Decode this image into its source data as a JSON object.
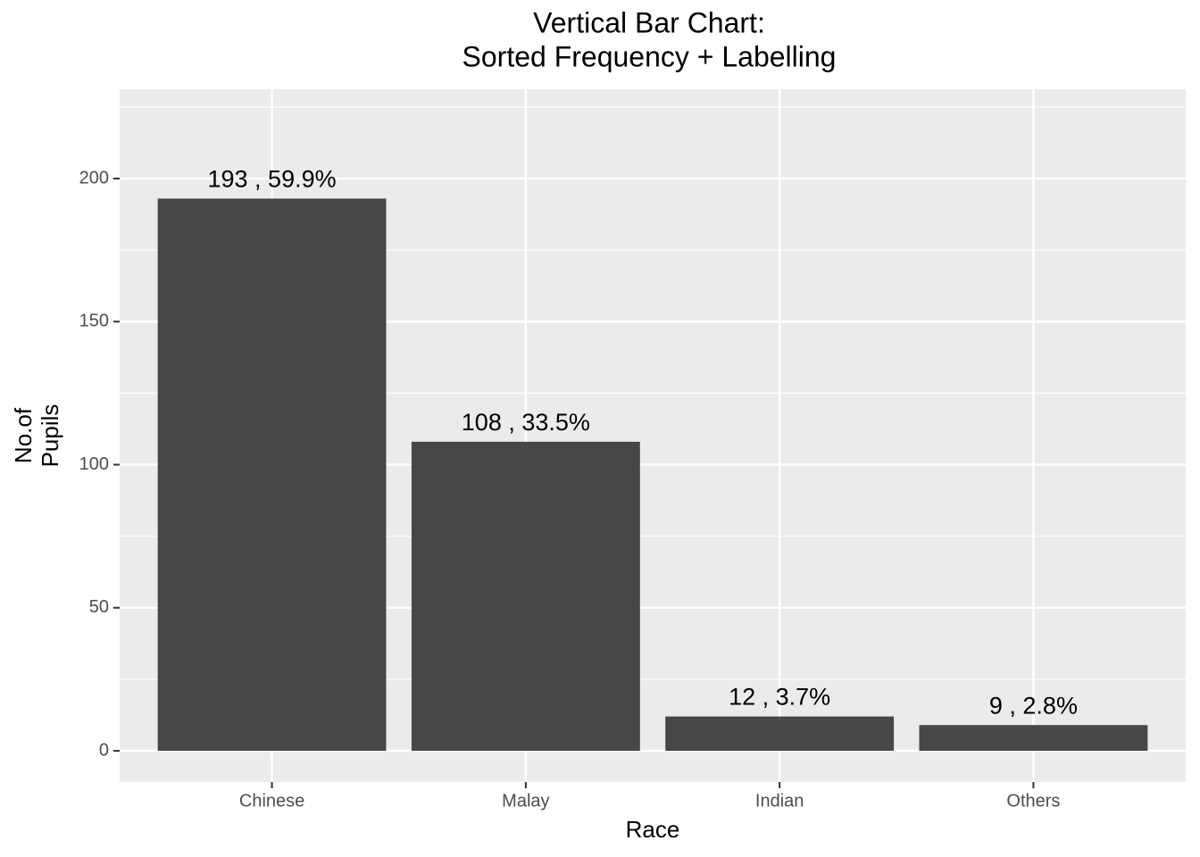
{
  "chart_data": {
    "type": "bar",
    "title": [
      "Vertical Bar Chart:",
      "Sorted Frequency + Labelling"
    ],
    "x_label": "Race",
    "y_label": [
      "No.of",
      "Pupils"
    ],
    "categories": [
      "Chinese",
      "Malay",
      "Indian",
      "Others"
    ],
    "values": [
      193,
      108,
      12,
      9
    ],
    "value_labels": [
      "193 , 59.9%",
      "108 , 33.5%",
      "12 , 3.7%",
      "9 , 2.8%"
    ],
    "color": "#474747",
    "ylim": [
      -10.9,
      231.2
    ],
    "yticks": [
      0,
      50,
      100,
      150,
      200
    ],
    "minor_yticks": [
      25,
      75,
      125,
      175,
      225
    ],
    "grid": true
  }
}
